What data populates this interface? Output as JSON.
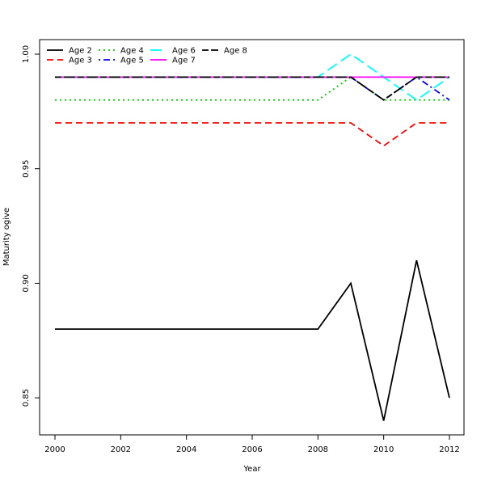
{
  "chart_data": {
    "type": "line",
    "xlabel": "Year",
    "ylabel": "Maturity ogive",
    "xlim": [
      2000,
      2012
    ],
    "ylim": [
      0.835,
      1.005
    ],
    "x_ticks": [
      2000,
      2002,
      2004,
      2006,
      2008,
      2010,
      2012
    ],
    "y_ticks": [
      0.85,
      0.9,
      0.95,
      1.0
    ],
    "y_tick_labels": [
      "0.85",
      "0.90",
      "0.95",
      "1.00"
    ],
    "grid": false,
    "legend_position": "top-left",
    "x": [
      2000,
      2001,
      2002,
      2003,
      2004,
      2005,
      2006,
      2007,
      2008,
      2009,
      2010,
      2011,
      2012
    ],
    "series": [
      {
        "name": "Age 2",
        "color": "#000000",
        "dash": "solid",
        "values": [
          0.88,
          0.88,
          0.88,
          0.88,
          0.88,
          0.88,
          0.88,
          0.88,
          0.88,
          0.9,
          0.84,
          0.91,
          0.85
        ]
      },
      {
        "name": "Age 3",
        "color": "#ff0000",
        "dash": "dashed",
        "values": [
          0.97,
          0.97,
          0.97,
          0.97,
          0.97,
          0.97,
          0.97,
          0.97,
          0.97,
          0.97,
          0.96,
          0.97,
          0.97
        ]
      },
      {
        "name": "Age 4",
        "color": "#00cd00",
        "dash": "dotted",
        "values": [
          0.98,
          0.98,
          0.98,
          0.98,
          0.98,
          0.98,
          0.98,
          0.98,
          0.98,
          0.99,
          0.98,
          0.98,
          0.98
        ]
      },
      {
        "name": "Age 5",
        "color": "#0000ff",
        "dash": "dotdash",
        "values": [
          0.99,
          0.99,
          0.99,
          0.99,
          0.99,
          0.99,
          0.99,
          0.99,
          0.99,
          0.99,
          0.98,
          0.99,
          0.98
        ]
      },
      {
        "name": "Age 6",
        "color": "#00ffff",
        "dash": "longdash",
        "values": [
          0.99,
          0.99,
          0.99,
          0.99,
          0.99,
          0.99,
          0.99,
          0.99,
          0.99,
          1.0,
          0.99,
          0.98,
          0.99
        ]
      },
      {
        "name": "Age 7",
        "color": "#ff00ff",
        "dash": "solid",
        "values": [
          0.99,
          0.99,
          0.99,
          0.99,
          0.99,
          0.99,
          0.99,
          0.99,
          0.99,
          0.99,
          0.99,
          0.99,
          0.99
        ]
      },
      {
        "name": "Age 8",
        "color": "#000000",
        "dash": "twodash",
        "values": [
          0.99,
          0.99,
          0.99,
          0.99,
          0.99,
          0.99,
          0.99,
          0.99,
          0.99,
          0.99,
          0.98,
          0.99,
          0.99
        ]
      }
    ]
  }
}
